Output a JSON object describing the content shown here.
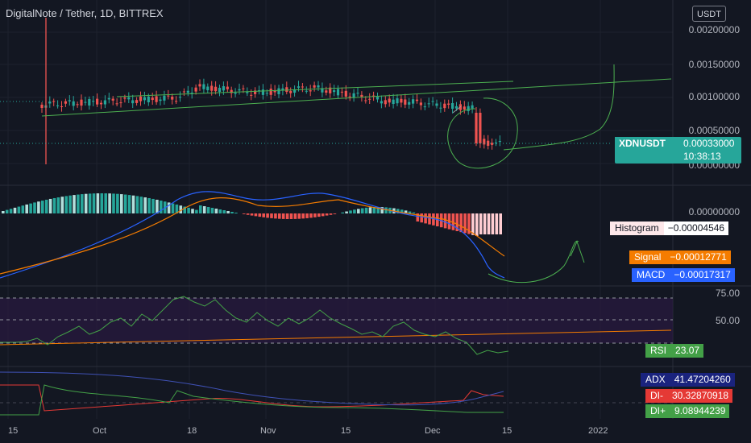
{
  "header": {
    "title": "DigitalNote / Tether, 1D, BITTREX",
    "currency_button": "USDT"
  },
  "price_axis": [
    "0.00200000",
    "0.00150000",
    "0.00100000",
    "0.00050000",
    "0.00000000"
  ],
  "price_tag": {
    "symbol": "XDNUSDT",
    "price": "0.00033000",
    "countdown": "10:38:13",
    "color": "#26a69a"
  },
  "macd_pane": {
    "axis_zero": "0.00000000",
    "histogram": {
      "label": "Histogram",
      "value": "−0.00004546"
    },
    "signal": {
      "label": "Signal",
      "value": "−0.00012771",
      "color": "#f57c00"
    },
    "macd": {
      "label": "MACD",
      "value": "−0.00017317",
      "color": "#2962ff"
    }
  },
  "rsi_pane": {
    "axis": [
      "75.00",
      "50.00"
    ],
    "rsi": {
      "label": "RSI",
      "value": "23.07",
      "color": "#43a047"
    }
  },
  "dmi_pane": {
    "adx": {
      "label": "ADX",
      "value": "41.47204260",
      "color": "#1a237e"
    },
    "dim": {
      "label": "DI-",
      "value": "30.32870918",
      "color": "#e53935"
    },
    "dip": {
      "label": "DI+",
      "value": "9.08944239",
      "color": "#43a047"
    }
  },
  "time_axis": [
    "15",
    "Oct",
    "18",
    "Nov",
    "15",
    "Dec",
    "15",
    "2022"
  ],
  "colors": {
    "up": "#26a69a",
    "down": "#ef5350",
    "background": "#131722",
    "grid": "#1e222d",
    "drawing": "#4caf50"
  }
}
